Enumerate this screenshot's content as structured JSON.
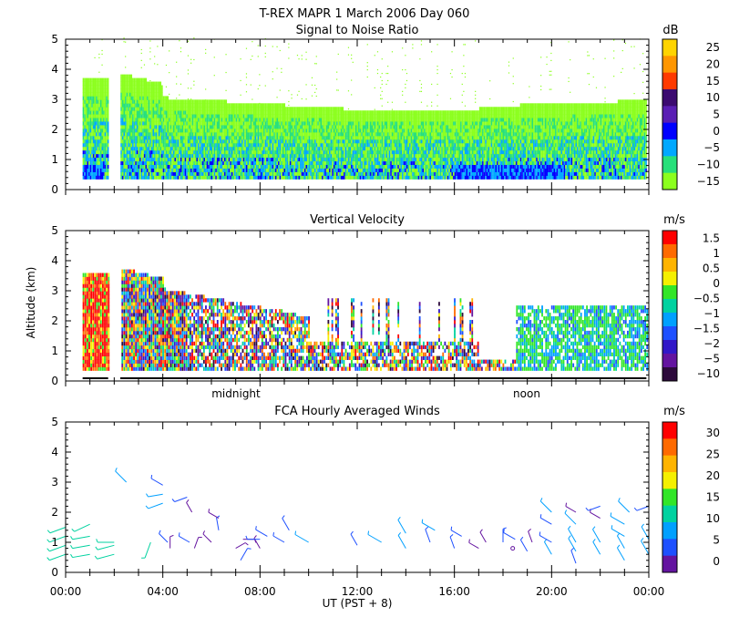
{
  "figure": {
    "title": "T-REX   MAPR   1 March 2006 Day 060",
    "xlabel": "UT   (PST + 8)",
    "time_ticks": [
      "00:00",
      "04:00",
      "08:00",
      "12:00",
      "16:00",
      "20:00",
      "00:00"
    ],
    "midnight_label": "midnight",
    "noon_label": "noon"
  },
  "chart_data": [
    {
      "type": "heatmap",
      "title": "Signal to Noise Ratio",
      "ylabel": "",
      "units": "dB",
      "x_range_hours": [
        0,
        24
      ],
      "ylim": [
        0,
        5
      ],
      "y_ticks": [
        "0",
        "1",
        "2",
        "3",
        "4",
        "5"
      ],
      "colorbar_labels": [
        "25",
        "20",
        "15",
        "10",
        "5",
        "0",
        "−5",
        "−10",
        "−15"
      ],
      "colorbar_colors": [
        "#ffd400",
        "#ff9600",
        "#ff3a00",
        "#3c0a70",
        "#5a1eb4",
        "#0000ff",
        "#00a8ff",
        "#27e07a",
        "#8cff1e"
      ],
      "coverage_top_km": [
        [
          0.5,
          3.7
        ],
        [
          1.8,
          0
        ],
        [
          2.2,
          4.0
        ],
        [
          4,
          3.2
        ],
        [
          8,
          3.0
        ],
        [
          12,
          2.8
        ],
        [
          16,
          2.7
        ],
        [
          20,
          2.9
        ],
        [
          24,
          2.9
        ]
      ],
      "data_gaps_hours": [
        [
          1.75,
          2.25
        ]
      ]
    },
    {
      "type": "heatmap",
      "title": "Vertical Velocity",
      "ylabel": "Altitude  (km)",
      "units": "m/s",
      "x_range_hours": [
        0,
        24
      ],
      "ylim": [
        0,
        5
      ],
      "y_ticks": [
        "0",
        "1",
        "2",
        "3",
        "4",
        "5"
      ],
      "colorbar_labels": [
        "1.5",
        "1",
        "0.5",
        "0",
        "−0.5",
        "−1",
        "−1.5",
        "−2",
        "−5",
        "−10"
      ],
      "colorbar_colors": [
        "#ff0000",
        "#ff6a00",
        "#ffb400",
        "#f5f000",
        "#32e628",
        "#00d2a0",
        "#00a0ff",
        "#1e50ff",
        "#3218c8",
        "#6414a0",
        "#2d0a3c"
      ],
      "data_gaps_hours": [
        [
          1.75,
          2.25
        ]
      ]
    },
    {
      "type": "scatter",
      "title": "FCA Hourly Averaged Winds",
      "ylabel": "",
      "units": "m/s",
      "x_range_hours": [
        0,
        24
      ],
      "ylim": [
        0,
        5
      ],
      "y_ticks": [
        "0",
        "1",
        "2",
        "3",
        "4",
        "5"
      ],
      "colorbar_labels": [
        "30",
        "25",
        "20",
        "15",
        "10",
        "5",
        "0"
      ],
      "colorbar_colors": [
        "#ff0000",
        "#ff6a00",
        "#ffb400",
        "#f5f000",
        "#32e628",
        "#00d2a0",
        "#00a0ff",
        "#1e50ff",
        "#6414a0"
      ],
      "wind_barbs": [
        {
          "t": 0.0,
          "alt": 0.6,
          "speed": 13,
          "dir": 250
        },
        {
          "t": 0.0,
          "alt": 0.9,
          "speed": 13,
          "dir": 250
        },
        {
          "t": 0.0,
          "alt": 1.2,
          "speed": 13,
          "dir": 250
        },
        {
          "t": 0.0,
          "alt": 1.5,
          "speed": 12,
          "dir": 250
        },
        {
          "t": 1.0,
          "alt": 0.6,
          "speed": 14,
          "dir": 260
        },
        {
          "t": 1.0,
          "alt": 0.9,
          "speed": 14,
          "dir": 260
        },
        {
          "t": 1.0,
          "alt": 1.2,
          "speed": 14,
          "dir": 260
        },
        {
          "t": 1.0,
          "alt": 1.6,
          "speed": 13,
          "dir": 245
        },
        {
          "t": 2.0,
          "alt": 0.6,
          "speed": 14,
          "dir": 255
        },
        {
          "t": 2.0,
          "alt": 0.9,
          "speed": 13,
          "dir": 255
        },
        {
          "t": 2.0,
          "alt": 1.0,
          "speed": 12,
          "dir": 270
        },
        {
          "t": 2.5,
          "alt": 3.0,
          "speed": 10,
          "dir": 315
        },
        {
          "t": 3.5,
          "alt": 1.0,
          "speed": 12,
          "dir": 200
        },
        {
          "t": 4.0,
          "alt": 2.3,
          "speed": 10,
          "dir": 250
        },
        {
          "t": 4.0,
          "alt": 2.6,
          "speed": 9,
          "dir": 260
        },
        {
          "t": 4.0,
          "alt": 2.9,
          "speed": 6,
          "dir": 300
        },
        {
          "t": 4.2,
          "alt": 1.0,
          "speed": 4,
          "dir": 315
        },
        {
          "t": 4.3,
          "alt": 0.8,
          "speed": 3,
          "dir": 0
        },
        {
          "t": 5.0,
          "alt": 2.5,
          "speed": 6,
          "dir": 250
        },
        {
          "t": 5.1,
          "alt": 1.0,
          "speed": 4,
          "dir": 300
        },
        {
          "t": 5.3,
          "alt": 0.8,
          "speed": 3,
          "dir": 20
        },
        {
          "t": 5.2,
          "alt": 2.0,
          "speed": 2,
          "dir": 330
        },
        {
          "t": 6.0,
          "alt": 1.0,
          "speed": 3,
          "dir": 315
        },
        {
          "t": 6.3,
          "alt": 1.4,
          "speed": 5,
          "dir": 350
        },
        {
          "t": 6.3,
          "alt": 1.8,
          "speed": 3,
          "dir": 300
        },
        {
          "t": 7.0,
          "alt": 0.8,
          "speed": 2,
          "dir": 60
        },
        {
          "t": 7.2,
          "alt": 0.4,
          "speed": 7,
          "dir": 30
        },
        {
          "t": 7.3,
          "alt": 1.1,
          "speed": 3,
          "dir": 90
        },
        {
          "t": 8.0,
          "alt": 0.8,
          "speed": 3,
          "dir": 330
        },
        {
          "t": 8.0,
          "alt": 1.1,
          "speed": 5,
          "dir": 270
        },
        {
          "t": 8.3,
          "alt": 1.2,
          "speed": 6,
          "dir": 300
        },
        {
          "t": 9.0,
          "alt": 1.0,
          "speed": 5,
          "dir": 300
        },
        {
          "t": 9.2,
          "alt": 1.4,
          "speed": 7,
          "dir": 330
        },
        {
          "t": 10.0,
          "alt": 1.0,
          "speed": 10,
          "dir": 300
        },
        {
          "t": 12.0,
          "alt": 0.9,
          "speed": 5,
          "dir": 330
        },
        {
          "t": 13.0,
          "alt": 1.0,
          "speed": 10,
          "dir": 300
        },
        {
          "t": 14.0,
          "alt": 1.3,
          "speed": 10,
          "dir": 330
        },
        {
          "t": 14.0,
          "alt": 0.8,
          "speed": 9,
          "dir": 330
        },
        {
          "t": 15.0,
          "alt": 1.0,
          "speed": 7,
          "dir": 340
        },
        {
          "t": 15.2,
          "alt": 1.4,
          "speed": 9,
          "dir": 300
        },
        {
          "t": 16.0,
          "alt": 0.8,
          "speed": 4,
          "dir": 340
        },
        {
          "t": 16.3,
          "alt": 1.2,
          "speed": 4,
          "dir": 300
        },
        {
          "t": 17.0,
          "alt": 0.8,
          "speed": 2,
          "dir": 300
        },
        {
          "t": 17.3,
          "alt": 1.0,
          "speed": 3,
          "dir": 330
        },
        {
          "t": 18.0,
          "alt": 1.0,
          "speed": 6,
          "dir": 0
        },
        {
          "t": 18.4,
          "alt": 0.8,
          "speed": 0,
          "dir": 0
        },
        {
          "t": 18.5,
          "alt": 1.1,
          "speed": 6,
          "dir": 300
        },
        {
          "t": 19.0,
          "alt": 0.7,
          "speed": 6,
          "dir": 330
        },
        {
          "t": 19.2,
          "alt": 1.0,
          "speed": 3,
          "dir": 340
        },
        {
          "t": 20.0,
          "alt": 0.6,
          "speed": 8,
          "dir": 330
        },
        {
          "t": 20.0,
          "alt": 1.0,
          "speed": 7,
          "dir": 300
        },
        {
          "t": 20.0,
          "alt": 1.6,
          "speed": 5,
          "dir": 300
        },
        {
          "t": 20.0,
          "alt": 2.0,
          "speed": 10,
          "dir": 315
        },
        {
          "t": 21.0,
          "alt": 0.3,
          "speed": 7,
          "dir": 340
        },
        {
          "t": 21.0,
          "alt": 0.7,
          "speed": 9,
          "dir": 330
        },
        {
          "t": 21.0,
          "alt": 1.0,
          "speed": 10,
          "dir": 330
        },
        {
          "t": 21.0,
          "alt": 1.6,
          "speed": 10,
          "dir": 315
        },
        {
          "t": 21.0,
          "alt": 2.0,
          "speed": 3,
          "dir": 300
        },
        {
          "t": 22.0,
          "alt": 0.6,
          "speed": 8,
          "dir": 330
        },
        {
          "t": 22.0,
          "alt": 1.0,
          "speed": 9,
          "dir": 330
        },
        {
          "t": 22.0,
          "alt": 1.8,
          "speed": 3,
          "dir": 300
        },
        {
          "t": 22.0,
          "alt": 2.2,
          "speed": 5,
          "dir": 250
        },
        {
          "t": 23.0,
          "alt": 0.4,
          "speed": 8,
          "dir": 330
        },
        {
          "t": 23.0,
          "alt": 0.8,
          "speed": 8,
          "dir": 330
        },
        {
          "t": 23.0,
          "alt": 1.2,
          "speed": 9,
          "dir": 300
        },
        {
          "t": 23.0,
          "alt": 1.6,
          "speed": 11,
          "dir": 300
        },
        {
          "t": 23.2,
          "alt": 2.0,
          "speed": 10,
          "dir": 315
        },
        {
          "t": 24.0,
          "alt": 0.6,
          "speed": 10,
          "dir": 330
        },
        {
          "t": 24.0,
          "alt": 1.1,
          "speed": 8,
          "dir": 330
        },
        {
          "t": 24.0,
          "alt": 2.2,
          "speed": 5,
          "dir": 250
        }
      ]
    }
  ]
}
